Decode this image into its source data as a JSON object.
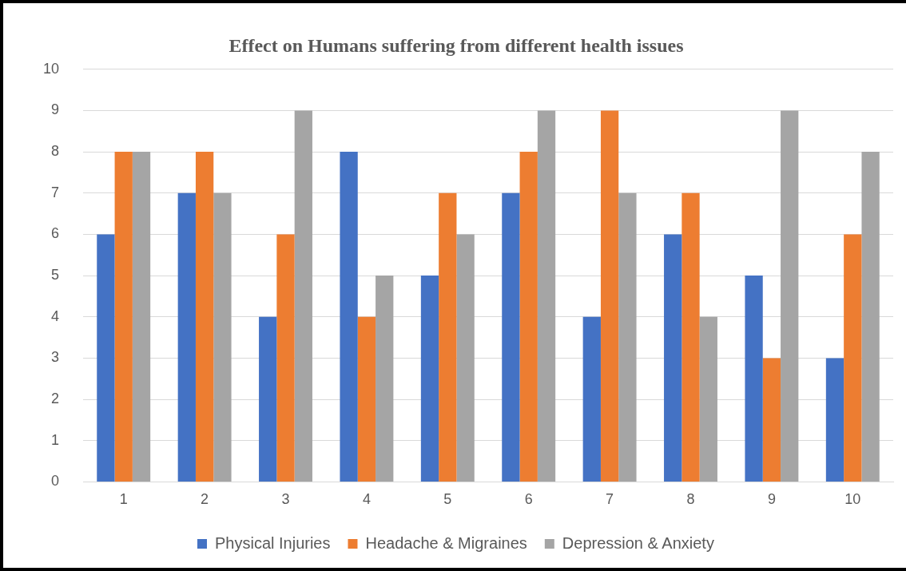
{
  "chart_data": {
    "type": "bar",
    "title": "Effect on Humans suffering from different health issues",
    "categories": [
      "1",
      "2",
      "3",
      "4",
      "5",
      "6",
      "7",
      "8",
      "9",
      "10"
    ],
    "series": [
      {
        "name": "Physical Injuries",
        "color": "#4472c4",
        "values": [
          6,
          7,
          4,
          8,
          5,
          7,
          4,
          6,
          5,
          3
        ]
      },
      {
        "name": "Headache & Migraines",
        "color": "#ed7d31",
        "values": [
          8,
          8,
          6,
          4,
          7,
          8,
          9,
          7,
          3,
          6
        ]
      },
      {
        "name": "Depression & Anxiety",
        "color": "#a5a5a5",
        "values": [
          8,
          7,
          9,
          5,
          6,
          9,
          7,
          4,
          9,
          8
        ]
      }
    ],
    "ylim": [
      0,
      10
    ],
    "yticks": [
      0,
      1,
      2,
      3,
      4,
      5,
      6,
      7,
      8,
      9,
      10
    ],
    "grid": "y",
    "legend": "bottom"
  }
}
